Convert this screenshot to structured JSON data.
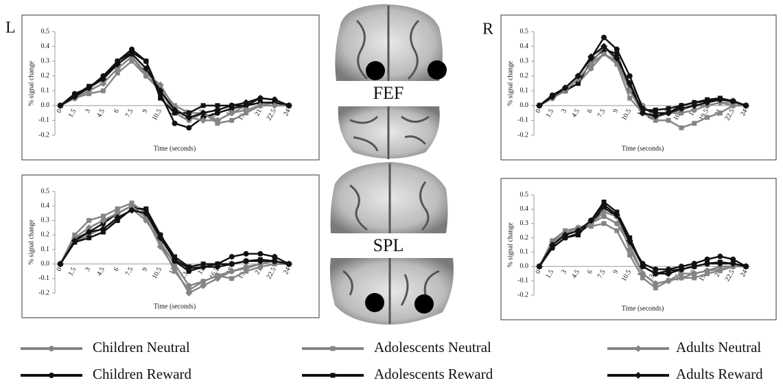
{
  "panel_labels": {
    "left": "L",
    "right": "R"
  },
  "regions": [
    "FEF",
    "SPL"
  ],
  "chart_data": [
    {
      "type": "line",
      "x_label": "Time (seconds)",
      "y_label": "% signal change",
      "x": [
        0,
        1.5,
        3,
        4.5,
        6,
        7.5,
        9,
        10.5,
        12,
        13.5,
        15,
        16.5,
        18,
        19.5,
        21,
        22.5,
        24
      ],
      "xlim": [
        0,
        24
      ],
      "xticks": [
        0,
        1.5,
        3,
        4.5,
        6,
        7.5,
        9,
        10.5,
        12,
        13.5,
        15,
        16.5,
        18,
        19.5,
        21,
        22.5,
        24
      ],
      "ylim": [
        -0.2,
        0.5
      ],
      "yticks": [
        -0.2,
        -0.1,
        {
          "value": 0,
          "label": "0.0"
        },
        0.1,
        0.2,
        0.3,
        0.4,
        0.5
      ],
      "grid": false,
      "series": [
        {
          "name": "Children Neutral",
          "color": "#858585",
          "marker": "circle",
          "values": [
            0,
            0.05,
            0.1,
            0.15,
            0.25,
            0.33,
            0.2,
            0.1,
            -0.05,
            -0.1,
            -0.05,
            -0.1,
            -0.05,
            0,
            0.02,
            0.02,
            0
          ]
        },
        {
          "name": "Children Reward",
          "color": "#111111",
          "marker": "circle",
          "values": [
            0,
            0.08,
            0.12,
            0.2,
            0.3,
            0.38,
            0.3,
            0.08,
            -0.12,
            -0.15,
            -0.08,
            -0.05,
            -0.02,
            0,
            0.05,
            0.04,
            0
          ]
        },
        {
          "name": "Adolescents Neutral",
          "color": "#858585",
          "marker": "square",
          "values": [
            0,
            0.05,
            0.08,
            0.1,
            0.22,
            0.3,
            0.2,
            0.12,
            0,
            -0.05,
            -0.05,
            -0.12,
            -0.1,
            -0.05,
            0,
            0.02,
            0
          ]
        },
        {
          "name": "Adolescents Reward",
          "color": "#111111",
          "marker": "square",
          "values": [
            0,
            0.07,
            0.13,
            0.18,
            0.3,
            0.36,
            0.3,
            0.05,
            -0.05,
            -0.05,
            0,
            0,
            0,
            0,
            0.02,
            0.02,
            0
          ]
        },
        {
          "name": "Adults Neutral",
          "color": "#858585",
          "marker": "diamond",
          "values": [
            0,
            0.05,
            0.1,
            0.15,
            0.25,
            0.33,
            0.22,
            0.14,
            -0.02,
            -0.08,
            -0.1,
            -0.1,
            -0.05,
            -0.03,
            0,
            0,
            0
          ]
        },
        {
          "name": "Adults Reward",
          "color": "#111111",
          "marker": "diamond",
          "values": [
            0,
            0.06,
            0.12,
            0.18,
            0.28,
            0.35,
            0.25,
            0.1,
            -0.03,
            -0.08,
            -0.05,
            -0.03,
            0,
            0.02,
            0.05,
            0.04,
            0
          ]
        }
      ]
    },
    {
      "type": "line",
      "x_label": "Time (seconds)",
      "y_label": "% signal change",
      "x": [
        0,
        1.5,
        3,
        4.5,
        6,
        7.5,
        9,
        10.5,
        12,
        13.5,
        15,
        16.5,
        18,
        19.5,
        21,
        22.5,
        24
      ],
      "xlim": [
        0,
        24
      ],
      "xticks": [
        0,
        1.5,
        3,
        4.5,
        6,
        7.5,
        9,
        10.5,
        12,
        13.5,
        15,
        16.5,
        18,
        19.5,
        21,
        22.5,
        24
      ],
      "ylim": [
        -0.2,
        0.5
      ],
      "yticks": [
        -0.2,
        -0.1,
        {
          "value": 0,
          "label": "0.0"
        },
        0.1,
        0.2,
        0.3,
        0.4,
        0.5
      ],
      "grid": false,
      "series": [
        {
          "name": "Children Neutral",
          "color": "#858585",
          "marker": "circle",
          "values": [
            0,
            0.05,
            0.1,
            0.15,
            0.25,
            0.35,
            0.3,
            0.15,
            0,
            -0.08,
            -0.05,
            -0.05,
            -0.03,
            0,
            0.02,
            0.02,
            0
          ]
        },
        {
          "name": "Children Reward",
          "color": "#111111",
          "marker": "circle",
          "values": [
            0,
            0.07,
            0.12,
            0.2,
            0.32,
            0.46,
            0.38,
            0.2,
            -0.02,
            -0.05,
            -0.05,
            0,
            0.02,
            0.03,
            0.04,
            0.03,
            0
          ]
        },
        {
          "name": "Adolescents Neutral",
          "color": "#858585",
          "marker": "square",
          "values": [
            0,
            0.05,
            0.1,
            0.18,
            0.28,
            0.35,
            0.28,
            0.05,
            -0.05,
            -0.1,
            -0.1,
            -0.15,
            -0.12,
            -0.08,
            -0.05,
            0,
            0
          ]
        },
        {
          "name": "Adolescents Reward",
          "color": "#111111",
          "marker": "square",
          "values": [
            0,
            0.06,
            0.1,
            0.15,
            0.3,
            0.38,
            0.35,
            0.12,
            -0.03,
            -0.03,
            -0.02,
            0,
            0.02,
            0.04,
            0.05,
            0.03,
            0
          ]
        },
        {
          "name": "Adults Neutral",
          "color": "#858585",
          "marker": "diamond",
          "values": [
            0,
            0.05,
            0.1,
            0.18,
            0.28,
            0.4,
            0.3,
            0.1,
            -0.05,
            -0.08,
            -0.05,
            -0.03,
            0,
            0,
            0.02,
            0,
            0
          ]
        },
        {
          "name": "Adults Reward",
          "color": "#111111",
          "marker": "diamond",
          "values": [
            0,
            0.06,
            0.12,
            0.2,
            0.33,
            0.4,
            0.32,
            0.15,
            -0.05,
            -0.07,
            -0.05,
            -0.02,
            0,
            0.02,
            0.04,
            0.03,
            0
          ]
        }
      ]
    },
    {
      "type": "line",
      "x_label": "Time (seconds)",
      "y_label": "% signal change",
      "x": [
        0,
        1.5,
        3,
        4.5,
        6,
        7.5,
        9,
        10.5,
        12,
        13.5,
        15,
        16.5,
        18,
        19.5,
        21,
        22.5,
        24
      ],
      "xlim": [
        0,
        24
      ],
      "xticks": [
        0,
        1.5,
        3,
        4.5,
        6,
        7.5,
        9,
        10.5,
        12,
        13.5,
        15,
        16.5,
        18,
        19.5,
        21,
        22.5,
        24
      ],
      "ylim": [
        -0.2,
        0.5
      ],
      "yticks": [
        -0.2,
        -0.1,
        {
          "value": 0,
          "label": "0.0"
        },
        0.1,
        0.2,
        0.3,
        0.4,
        0.5
      ],
      "grid": false,
      "series": [
        {
          "name": "Children Neutral",
          "color": "#858585",
          "marker": "circle",
          "values": [
            0,
            0.15,
            0.2,
            0.25,
            0.3,
            0.38,
            0.3,
            0.15,
            0,
            -0.15,
            -0.12,
            -0.08,
            -0.05,
            -0.02,
            0,
            0.02,
            0
          ]
        },
        {
          "name": "Children Reward",
          "color": "#111111",
          "marker": "circle",
          "values": [
            0,
            0.17,
            0.22,
            0.28,
            0.35,
            0.4,
            0.37,
            0.2,
            0.02,
            -0.05,
            -0.02,
            0,
            0.05,
            0.07,
            0.07,
            0.05,
            0
          ]
        },
        {
          "name": "Adolescents Neutral",
          "color": "#858585",
          "marker": "square",
          "values": [
            0,
            0.2,
            0.3,
            0.33,
            0.38,
            0.42,
            0.35,
            0.15,
            -0.05,
            -0.18,
            -0.12,
            -0.08,
            -0.1,
            -0.05,
            -0.02,
            0,
            0
          ]
        },
        {
          "name": "Adolescents Reward",
          "color": "#111111",
          "marker": "square",
          "values": [
            0,
            0.15,
            0.18,
            0.22,
            0.3,
            0.38,
            0.38,
            0.2,
            0.05,
            -0.02,
            0,
            0,
            0,
            0.02,
            0.03,
            0.02,
            0
          ]
        },
        {
          "name": "Adults Neutral",
          "color": "#858585",
          "marker": "diamond",
          "values": [
            0,
            0.18,
            0.25,
            0.3,
            0.35,
            0.4,
            0.32,
            0.12,
            -0.03,
            -0.2,
            -0.15,
            -0.1,
            -0.05,
            -0.03,
            0,
            0.02,
            0
          ]
        },
        {
          "name": "Adults Reward",
          "color": "#111111",
          "marker": "diamond",
          "values": [
            0,
            0.16,
            0.22,
            0.24,
            0.32,
            0.37,
            0.35,
            0.18,
            0.03,
            -0.03,
            -0.02,
            -0.02,
            0,
            0.02,
            0.02,
            0.02,
            0
          ]
        }
      ]
    },
    {
      "type": "line",
      "x_label": "Time (seconds)",
      "y_label": "% signal change",
      "x": [
        0,
        1.5,
        3,
        4.5,
        6,
        7.5,
        9,
        10.5,
        12,
        13.5,
        15,
        16.5,
        18,
        19.5,
        21,
        22.5,
        24
      ],
      "xlim": [
        0,
        24
      ],
      "xticks": [
        0,
        1.5,
        3,
        4.5,
        6,
        7.5,
        9,
        10.5,
        12,
        13.5,
        15,
        16.5,
        18,
        19.5,
        21,
        22.5,
        24
      ],
      "ylim": [
        -0.2,
        0.5
      ],
      "yticks": [
        -0.2,
        -0.1,
        {
          "value": 0,
          "label": "0.0"
        },
        0.1,
        0.2,
        0.3,
        0.4,
        0.5
      ],
      "grid": false,
      "series": [
        {
          "name": "Children Neutral",
          "color": "#858585",
          "marker": "circle",
          "values": [
            0,
            0.15,
            0.22,
            0.25,
            0.3,
            0.35,
            0.3,
            0.15,
            -0.05,
            -0.12,
            -0.1,
            -0.08,
            -0.05,
            -0.03,
            0,
            0,
            0
          ]
        },
        {
          "name": "Children Reward",
          "color": "#111111",
          "marker": "circle",
          "values": [
            0,
            0.13,
            0.2,
            0.23,
            0.3,
            0.41,
            0.35,
            0.17,
            0.02,
            -0.02,
            -0.02,
            0,
            0.02,
            0.05,
            0.07,
            0.05,
            0
          ]
        },
        {
          "name": "Adolescents Neutral",
          "color": "#858585",
          "marker": "square",
          "values": [
            0,
            0.18,
            0.25,
            0.27,
            0.28,
            0.3,
            0.25,
            0.08,
            -0.08,
            -0.15,
            -0.1,
            -0.08,
            -0.08,
            -0.05,
            -0.03,
            0,
            0
          ]
        },
        {
          "name": "Adolescents Reward",
          "color": "#111111",
          "marker": "square",
          "values": [
            0,
            0.13,
            0.2,
            0.22,
            0.32,
            0.45,
            0.38,
            0.2,
            0,
            -0.05,
            -0.03,
            -0.02,
            0,
            0.02,
            0.03,
            0.02,
            0
          ]
        },
        {
          "name": "Adults Neutral",
          "color": "#858585",
          "marker": "diamond",
          "values": [
            0,
            0.17,
            0.23,
            0.27,
            0.3,
            0.38,
            0.35,
            0.12,
            -0.05,
            -0.12,
            -0.1,
            -0.05,
            -0.05,
            -0.03,
            -0.02,
            0,
            0
          ]
        },
        {
          "name": "Adults Reward",
          "color": "#111111",
          "marker": "diamond",
          "values": [
            0,
            0.15,
            0.22,
            0.25,
            0.32,
            0.43,
            0.36,
            0.18,
            0,
            -0.05,
            -0.05,
            -0.02,
            0,
            0.02,
            0.02,
            0.02,
            0
          ]
        }
      ]
    }
  ]
}
